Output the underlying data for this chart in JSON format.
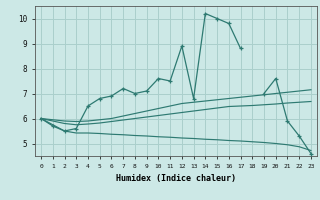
{
  "xlabel": "Humidex (Indice chaleur)",
  "x_values": [
    0,
    1,
    2,
    3,
    4,
    5,
    6,
    7,
    8,
    9,
    10,
    11,
    12,
    13,
    14,
    15,
    16,
    17,
    18,
    19,
    20,
    21,
    22,
    23
  ],
  "main_line": [
    6.0,
    5.7,
    5.5,
    5.6,
    6.5,
    6.8,
    6.9,
    7.2,
    7.0,
    7.1,
    7.6,
    7.5,
    8.9,
    6.8,
    10.2,
    10.0,
    9.8,
    8.8,
    null,
    7.0,
    7.6,
    5.9,
    5.3,
    4.6
  ],
  "line1": [
    6.0,
    5.95,
    5.9,
    5.88,
    5.9,
    5.95,
    6.0,
    6.1,
    6.2,
    6.3,
    6.4,
    6.5,
    6.6,
    6.65,
    6.7,
    6.75,
    6.8,
    6.85,
    6.9,
    6.95,
    7.0,
    7.05,
    7.1,
    7.15
  ],
  "line2": [
    6.0,
    5.9,
    5.8,
    5.75,
    5.78,
    5.82,
    5.88,
    5.94,
    6.0,
    6.06,
    6.12,
    6.18,
    6.24,
    6.3,
    6.36,
    6.42,
    6.48,
    6.5,
    6.52,
    6.55,
    6.58,
    6.62,
    6.65,
    6.68
  ],
  "line3": [
    6.0,
    5.75,
    5.5,
    5.42,
    5.42,
    5.4,
    5.37,
    5.35,
    5.32,
    5.3,
    5.27,
    5.25,
    5.22,
    5.2,
    5.17,
    5.15,
    5.12,
    5.1,
    5.07,
    5.04,
    5.0,
    4.95,
    4.87,
    4.72
  ],
  "bg_color": "#cce8e6",
  "grid_color": "#aacfcc",
  "line_color": "#2e7a72",
  "ylim": [
    4.5,
    10.5
  ],
  "yticks": [
    5,
    6,
    7,
    8,
    9,
    10
  ],
  "xlim_min": -0.5,
  "xlim_max": 23.5
}
